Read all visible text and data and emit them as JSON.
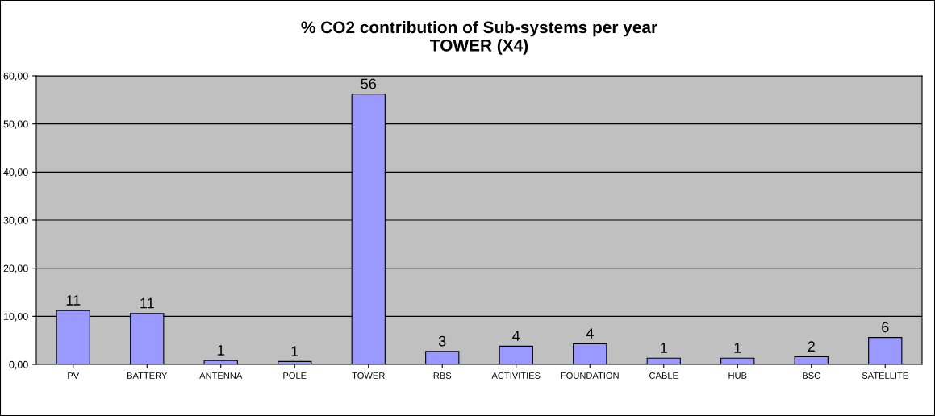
{
  "chart_data": {
    "type": "bar",
    "title": "% CO2 contribution of Sub-systems per year\nTOWER (X4)",
    "categories": [
      "PV",
      "BATTERY",
      "ANTENNA",
      "POLE",
      "TOWER",
      "RBS",
      "ACTIVITIES",
      "FOUNDATION",
      "CABLE",
      "HUB",
      "BSC",
      "SATELLITE"
    ],
    "values": [
      11.2,
      10.6,
      0.8,
      0.6,
      56.2,
      2.7,
      3.8,
      4.3,
      1.3,
      1.3,
      1.6,
      5.6
    ],
    "value_labels": [
      "11",
      "11",
      "1",
      "1",
      "56",
      "3",
      "4",
      "4",
      "1",
      "1",
      "2",
      "6"
    ],
    "color": "#9999ff",
    "ylim": [
      0,
      60
    ],
    "yticks": [
      {
        "value": 0,
        "label": "0,00"
      },
      {
        "value": 10,
        "label": "10,00"
      },
      {
        "value": 20,
        "label": "20,00"
      },
      {
        "value": 30,
        "label": "30,00"
      },
      {
        "value": 40,
        "label": "40,00"
      },
      {
        "value": 50,
        "label": "50,00"
      },
      {
        "value": 60,
        "label": "60,00"
      }
    ],
    "grid": "y",
    "legend": false
  }
}
